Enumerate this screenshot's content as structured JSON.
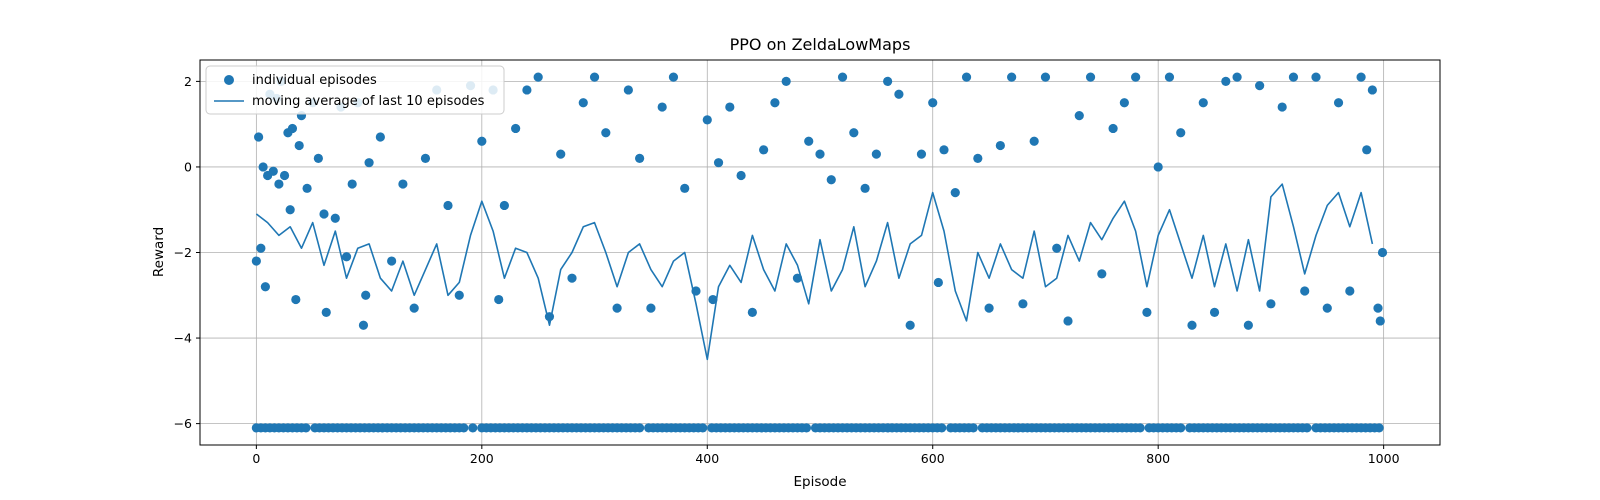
{
  "chart_data": {
    "type": "scatter",
    "title": "PPO on ZeldaLowMaps",
    "xlabel": "Episode",
    "ylabel": "Reward",
    "xlim": [
      -50,
      1050
    ],
    "ylim": [
      -6.5,
      2.5
    ],
    "xticks": [
      0,
      200,
      400,
      600,
      800,
      1000
    ],
    "yticks": [
      -6,
      -4,
      -2,
      0,
      2
    ],
    "xtick_labels": [
      "0",
      "200",
      "400",
      "600",
      "800",
      "1000"
    ],
    "ytick_labels": [
      "−6",
      "−4",
      "−2",
      "0",
      "2"
    ],
    "grid": true,
    "legend_position": "upper-left",
    "color": "#1f77b4",
    "series": [
      {
        "name": "individual episodes",
        "kind": "scatter",
        "points_summary": "1000 episodes; rewards split between a floor cluster at -6.1 (failed episodes) and a spread of values between about -3.7 and 2.1",
        "sample_points": [
          [
            0,
            -2.2
          ],
          [
            2,
            0.7
          ],
          [
            4,
            -1.9
          ],
          [
            6,
            0.0
          ],
          [
            8,
            -2.8
          ],
          [
            10,
            -0.2
          ],
          [
            12,
            1.7
          ],
          [
            15,
            -0.1
          ],
          [
            18,
            1.6
          ],
          [
            20,
            -0.4
          ],
          [
            22,
            2.0
          ],
          [
            25,
            -0.2
          ],
          [
            28,
            0.8
          ],
          [
            30,
            -1.0
          ],
          [
            32,
            0.9
          ],
          [
            35,
            -3.1
          ],
          [
            38,
            0.5
          ],
          [
            40,
            1.2
          ],
          [
            45,
            -0.5
          ],
          [
            50,
            1.5
          ],
          [
            55,
            0.2
          ],
          [
            60,
            -1.1
          ],
          [
            62,
            -3.4
          ],
          [
            70,
            -1.2
          ],
          [
            75,
            1.4
          ],
          [
            80,
            -2.1
          ],
          [
            85,
            -0.4
          ],
          [
            90,
            1.5
          ],
          [
            95,
            -3.7
          ],
          [
            97,
            -3.0
          ],
          [
            100,
            0.1
          ],
          [
            110,
            0.7
          ],
          [
            120,
            -2.2
          ],
          [
            130,
            -0.4
          ],
          [
            140,
            -3.3
          ],
          [
            150,
            0.2
          ],
          [
            160,
            1.8
          ],
          [
            170,
            -0.9
          ],
          [
            180,
            -3.0
          ],
          [
            190,
            1.9
          ],
          [
            200,
            0.6
          ],
          [
            210,
            1.8
          ],
          [
            215,
            -3.1
          ],
          [
            220,
            -0.9
          ],
          [
            230,
            0.9
          ],
          [
            240,
            1.8
          ],
          [
            250,
            2.1
          ],
          [
            260,
            -3.5
          ],
          [
            270,
            0.3
          ],
          [
            280,
            -2.6
          ],
          [
            290,
            1.5
          ],
          [
            300,
            2.1
          ],
          [
            310,
            0.8
          ],
          [
            320,
            -3.3
          ],
          [
            330,
            1.8
          ],
          [
            340,
            0.2
          ],
          [
            350,
            -3.3
          ],
          [
            360,
            1.4
          ],
          [
            370,
            2.1
          ],
          [
            380,
            -0.5
          ],
          [
            390,
            -2.9
          ],
          [
            400,
            1.1
          ],
          [
            405,
            -3.1
          ],
          [
            410,
            0.1
          ],
          [
            420,
            1.4
          ],
          [
            430,
            -0.2
          ],
          [
            440,
            -3.4
          ],
          [
            450,
            0.4
          ],
          [
            460,
            1.5
          ],
          [
            470,
            2.0
          ],
          [
            480,
            -2.6
          ],
          [
            490,
            0.6
          ],
          [
            500,
            0.3
          ],
          [
            510,
            -0.3
          ],
          [
            520,
            2.1
          ],
          [
            530,
            0.8
          ],
          [
            540,
            -0.5
          ],
          [
            550,
            0.3
          ],
          [
            560,
            2.0
          ],
          [
            570,
            1.7
          ],
          [
            580,
            -3.7
          ],
          [
            590,
            0.3
          ],
          [
            600,
            1.5
          ],
          [
            605,
            -2.7
          ],
          [
            610,
            0.4
          ],
          [
            620,
            -0.6
          ],
          [
            630,
            2.1
          ],
          [
            640,
            0.2
          ],
          [
            650,
            -3.3
          ],
          [
            660,
            0.5
          ],
          [
            670,
            2.1
          ],
          [
            680,
            -3.2
          ],
          [
            690,
            0.6
          ],
          [
            700,
            2.1
          ],
          [
            710,
            -1.9
          ],
          [
            720,
            -3.6
          ],
          [
            730,
            1.2
          ],
          [
            740,
            2.1
          ],
          [
            750,
            -2.5
          ],
          [
            760,
            0.9
          ],
          [
            770,
            1.5
          ],
          [
            780,
            2.1
          ],
          [
            790,
            -3.4
          ],
          [
            800,
            0.0
          ],
          [
            810,
            2.1
          ],
          [
            820,
            0.8
          ],
          [
            830,
            -3.7
          ],
          [
            840,
            1.5
          ],
          [
            850,
            -3.4
          ],
          [
            860,
            2.0
          ],
          [
            870,
            2.1
          ],
          [
            880,
            -3.7
          ],
          [
            890,
            1.9
          ],
          [
            900,
            -3.2
          ],
          [
            910,
            1.4
          ],
          [
            920,
            2.1
          ],
          [
            930,
            -2.9
          ],
          [
            940,
            2.1
          ],
          [
            950,
            -3.3
          ],
          [
            960,
            1.5
          ],
          [
            970,
            -2.9
          ],
          [
            980,
            2.1
          ],
          [
            985,
            0.4
          ],
          [
            990,
            1.8
          ],
          [
            995,
            -3.3
          ],
          [
            997,
            -3.6
          ],
          [
            999,
            -2.0
          ]
        ],
        "floor_value": -6.1
      },
      {
        "name": "moving average of last 10 episodes",
        "kind": "line",
        "sample_points": [
          [
            0,
            -1.1
          ],
          [
            10,
            -1.3
          ],
          [
            20,
            -1.6
          ],
          [
            30,
            -1.4
          ],
          [
            40,
            -1.9
          ],
          [
            50,
            -1.3
          ],
          [
            60,
            -2.3
          ],
          [
            70,
            -1.5
          ],
          [
            80,
            -2.6
          ],
          [
            90,
            -1.9
          ],
          [
            100,
            -1.8
          ],
          [
            110,
            -2.6
          ],
          [
            120,
            -2.9
          ],
          [
            130,
            -2.2
          ],
          [
            140,
            -3.0
          ],
          [
            150,
            -2.4
          ],
          [
            160,
            -1.8
          ],
          [
            170,
            -3.0
          ],
          [
            180,
            -2.7
          ],
          [
            190,
            -1.6
          ],
          [
            200,
            -0.8
          ],
          [
            210,
            -1.5
          ],
          [
            220,
            -2.6
          ],
          [
            230,
            -1.9
          ],
          [
            240,
            -2.0
          ],
          [
            250,
            -2.6
          ],
          [
            260,
            -3.7
          ],
          [
            270,
            -2.4
          ],
          [
            280,
            -2.0
          ],
          [
            290,
            -1.4
          ],
          [
            300,
            -1.3
          ],
          [
            310,
            -2.0
          ],
          [
            320,
            -2.8
          ],
          [
            330,
            -2.0
          ],
          [
            340,
            -1.8
          ],
          [
            350,
            -2.4
          ],
          [
            360,
            -2.8
          ],
          [
            370,
            -2.2
          ],
          [
            380,
            -2.0
          ],
          [
            390,
            -3.2
          ],
          [
            400,
            -4.5
          ],
          [
            410,
            -2.8
          ],
          [
            420,
            -2.3
          ],
          [
            430,
            -2.7
          ],
          [
            440,
            -1.6
          ],
          [
            450,
            -2.4
          ],
          [
            460,
            -2.9
          ],
          [
            470,
            -1.8
          ],
          [
            480,
            -2.3
          ],
          [
            490,
            -3.2
          ],
          [
            500,
            -1.7
          ],
          [
            510,
            -2.9
          ],
          [
            520,
            -2.4
          ],
          [
            530,
            -1.4
          ],
          [
            540,
            -2.8
          ],
          [
            550,
            -2.2
          ],
          [
            560,
            -1.3
          ],
          [
            570,
            -2.6
          ],
          [
            580,
            -1.8
          ],
          [
            590,
            -1.6
          ],
          [
            600,
            -0.6
          ],
          [
            610,
            -1.5
          ],
          [
            620,
            -2.9
          ],
          [
            630,
            -3.6
          ],
          [
            640,
            -2.0
          ],
          [
            650,
            -2.6
          ],
          [
            660,
            -1.8
          ],
          [
            670,
            -2.4
          ],
          [
            680,
            -2.6
          ],
          [
            690,
            -1.5
          ],
          [
            700,
            -2.8
          ],
          [
            710,
            -2.6
          ],
          [
            720,
            -1.6
          ],
          [
            730,
            -2.2
          ],
          [
            740,
            -1.3
          ],
          [
            750,
            -1.7
          ],
          [
            760,
            -1.2
          ],
          [
            770,
            -0.8
          ],
          [
            780,
            -1.5
          ],
          [
            790,
            -2.8
          ],
          [
            800,
            -1.6
          ],
          [
            810,
            -1.0
          ],
          [
            820,
            -1.8
          ],
          [
            830,
            -2.6
          ],
          [
            840,
            -1.6
          ],
          [
            850,
            -2.8
          ],
          [
            860,
            -1.8
          ],
          [
            870,
            -2.9
          ],
          [
            880,
            -1.7
          ],
          [
            890,
            -2.9
          ],
          [
            900,
            -0.7
          ],
          [
            910,
            -0.4
          ],
          [
            920,
            -1.4
          ],
          [
            930,
            -2.5
          ],
          [
            940,
            -1.6
          ],
          [
            950,
            -0.9
          ],
          [
            960,
            -0.6
          ],
          [
            970,
            -1.4
          ],
          [
            980,
            -0.6
          ],
          [
            990,
            -1.8
          ]
        ]
      }
    ]
  }
}
